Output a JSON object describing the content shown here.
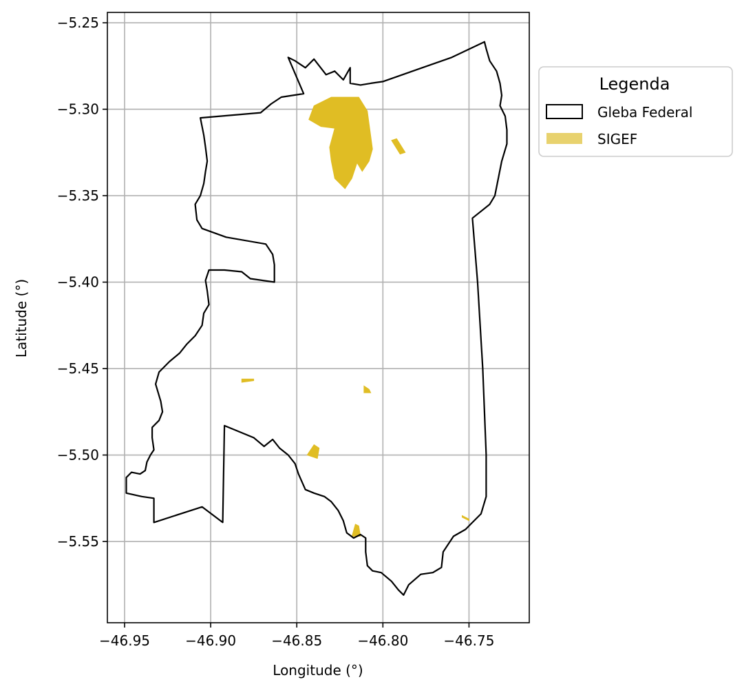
{
  "chart_data": {
    "type": "map",
    "xlabel": "Longitude (°)",
    "ylabel": "Latitude (°)",
    "xlim": [
      -46.96,
      -46.715
    ],
    "ylim": [
      -5.597,
      -5.244
    ],
    "grid": true,
    "x_ticks": [
      {
        "value": -46.95,
        "label": "−46.95"
      },
      {
        "value": -46.9,
        "label": "−46.90"
      },
      {
        "value": -46.85,
        "label": "−46.85"
      },
      {
        "value": -46.8,
        "label": "−46.80"
      },
      {
        "value": -46.75,
        "label": "−46.75"
      }
    ],
    "y_ticks": [
      {
        "value": -5.25,
        "label": "−5.25"
      },
      {
        "value": -5.3,
        "label": "−5.30"
      },
      {
        "value": -5.35,
        "label": "−5.35"
      },
      {
        "value": -5.4,
        "label": "−5.40"
      },
      {
        "value": -5.45,
        "label": "−5.45"
      },
      {
        "value": -5.5,
        "label": "−5.50"
      },
      {
        "value": -5.55,
        "label": "−5.55"
      }
    ],
    "legend": {
      "title": "Legenda",
      "placement": "outside-upper-right",
      "entries": [
        {
          "label": "Gleba Federal",
          "style": "outline",
          "color": "#000000"
        },
        {
          "label": "SIGEF",
          "style": "fill",
          "color": "#e8d26e"
        }
      ]
    },
    "layers": {
      "gleba_federal": {
        "name": "Gleba Federal",
        "edge_color": "#000000",
        "fill": "none",
        "boundary": [
          [
            -46.855,
            -5.27
          ],
          [
            -46.851,
            -5.272
          ],
          [
            -46.845,
            -5.276
          ],
          [
            -46.84,
            -5.271
          ],
          [
            -46.833,
            -5.28
          ],
          [
            -46.828,
            -5.278
          ],
          [
            -46.823,
            -5.283
          ],
          [
            -46.819,
            -5.276
          ],
          [
            -46.819,
            -5.285
          ],
          [
            -46.813,
            -5.286
          ],
          [
            -46.807,
            -5.285
          ],
          [
            -46.8,
            -5.284
          ],
          [
            -46.78,
            -5.277
          ],
          [
            -46.76,
            -5.27
          ],
          [
            -46.741,
            -5.261
          ],
          [
            -46.74,
            -5.265
          ],
          [
            -46.738,
            -5.272
          ],
          [
            -46.734,
            -5.278
          ],
          [
            -46.732,
            -5.285
          ],
          [
            -46.731,
            -5.292
          ],
          [
            -46.732,
            -5.298
          ],
          [
            -46.729,
            -5.304
          ],
          [
            -46.728,
            -5.312
          ],
          [
            -46.728,
            -5.32
          ],
          [
            -46.731,
            -5.33
          ],
          [
            -46.733,
            -5.34
          ],
          [
            -46.735,
            -5.35
          ],
          [
            -46.738,
            -5.355
          ],
          [
            -46.748,
            -5.363
          ],
          [
            -46.745,
            -5.4
          ],
          [
            -46.742,
            -5.45
          ],
          [
            -46.74,
            -5.5
          ],
          [
            -46.74,
            -5.524
          ],
          [
            -46.743,
            -5.534
          ],
          [
            -46.749,
            -5.54
          ],
          [
            -46.752,
            -5.543
          ],
          [
            -46.759,
            -5.547
          ],
          [
            -46.765,
            -5.556
          ],
          [
            -46.766,
            -5.565
          ],
          [
            -46.771,
            -5.568
          ],
          [
            -46.778,
            -5.569
          ],
          [
            -46.785,
            -5.575
          ],
          [
            -46.788,
            -5.581
          ],
          [
            -46.791,
            -5.578
          ],
          [
            -46.795,
            -5.573
          ],
          [
            -46.801,
            -5.568
          ],
          [
            -46.806,
            -5.567
          ],
          [
            -46.809,
            -5.564
          ],
          [
            -46.81,
            -5.556
          ],
          [
            -46.81,
            -5.548
          ],
          [
            -46.813,
            -5.546
          ],
          [
            -46.817,
            -5.548
          ],
          [
            -46.821,
            -5.545
          ],
          [
            -46.823,
            -5.538
          ],
          [
            -46.826,
            -5.532
          ],
          [
            -46.83,
            -5.527
          ],
          [
            -46.834,
            -5.524
          ],
          [
            -46.84,
            -5.522
          ],
          [
            -46.845,
            -5.52
          ],
          [
            -46.849,
            -5.511
          ],
          [
            -46.851,
            -5.505
          ],
          [
            -46.855,
            -5.5
          ],
          [
            -46.86,
            -5.496
          ],
          [
            -46.864,
            -5.491
          ],
          [
            -46.869,
            -5.495
          ],
          [
            -46.875,
            -5.49
          ],
          [
            -46.892,
            -5.483
          ],
          [
            -46.893,
            -5.539
          ],
          [
            -46.905,
            -5.53
          ],
          [
            -46.933,
            -5.539
          ],
          [
            -46.933,
            -5.525
          ],
          [
            -46.94,
            -5.524
          ],
          [
            -46.949,
            -5.522
          ],
          [
            -46.949,
            -5.513
          ],
          [
            -46.946,
            -5.51
          ],
          [
            -46.941,
            -5.511
          ],
          [
            -46.938,
            -5.509
          ],
          [
            -46.937,
            -5.504
          ],
          [
            -46.935,
            -5.5
          ],
          [
            -46.933,
            -5.497
          ],
          [
            -46.934,
            -5.49
          ],
          [
            -46.934,
            -5.484
          ],
          [
            -46.93,
            -5.48
          ],
          [
            -46.928,
            -5.475
          ],
          [
            -46.929,
            -5.469
          ],
          [
            -46.932,
            -5.459
          ],
          [
            -46.93,
            -5.452
          ],
          [
            -46.924,
            -5.446
          ],
          [
            -46.918,
            -5.441
          ],
          [
            -46.914,
            -5.436
          ],
          [
            -46.909,
            -5.431
          ],
          [
            -46.905,
            -5.425
          ],
          [
            -46.904,
            -5.418
          ],
          [
            -46.901,
            -5.413
          ],
          [
            -46.902,
            -5.405
          ],
          [
            -46.903,
            -5.399
          ],
          [
            -46.901,
            -5.393
          ],
          [
            -46.892,
            -5.393
          ],
          [
            -46.882,
            -5.394
          ],
          [
            -46.877,
            -5.398
          ],
          [
            -46.863,
            -5.4
          ],
          [
            -46.863,
            -5.39
          ],
          [
            -46.864,
            -5.384
          ],
          [
            -46.868,
            -5.378
          ],
          [
            -46.891,
            -5.374
          ],
          [
            -46.905,
            -5.369
          ],
          [
            -46.908,
            -5.364
          ],
          [
            -46.909,
            -5.355
          ],
          [
            -46.906,
            -5.35
          ],
          [
            -46.904,
            -5.343
          ],
          [
            -46.903,
            -5.336
          ],
          [
            -46.902,
            -5.33
          ],
          [
            -46.903,
            -5.322
          ],
          [
            -46.904,
            -5.315
          ],
          [
            -46.906,
            -5.305
          ],
          [
            -46.871,
            -5.302
          ],
          [
            -46.865,
            -5.297
          ],
          [
            -46.859,
            -5.293
          ],
          [
            -46.846,
            -5.291
          ],
          [
            -46.855,
            -5.27
          ]
        ]
      },
      "sigef": {
        "name": "SIGEF",
        "fill_color": "#e0bd24",
        "polygons": [
          [
            [
              -46.83,
              -5.293
            ],
            [
              -46.814,
              -5.293
            ],
            [
              -46.809,
              -5.301
            ],
            [
              -46.806,
              -5.323
            ],
            [
              -46.808,
              -5.33
            ],
            [
              -46.812,
              -5.336
            ],
            [
              -46.815,
              -5.331
            ],
            [
              -46.818,
              -5.34
            ],
            [
              -46.822,
              -5.346
            ],
            [
              -46.828,
              -5.34
            ],
            [
              -46.83,
              -5.33
            ],
            [
              -46.831,
              -5.322
            ],
            [
              -46.828,
              -5.311
            ],
            [
              -46.836,
              -5.31
            ],
            [
              -46.843,
              -5.306
            ],
            [
              -46.84,
              -5.298
            ]
          ],
          [
            [
              -46.795,
              -5.318
            ],
            [
              -46.792,
              -5.317
            ],
            [
              -46.787,
              -5.325
            ],
            [
              -46.79,
              -5.326
            ]
          ],
          [
            [
              -46.882,
              -5.456
            ],
            [
              -46.875,
              -5.456
            ],
            [
              -46.875,
              -5.457
            ],
            [
              -46.882,
              -5.458
            ]
          ],
          [
            [
              -46.811,
              -5.46
            ],
            [
              -46.808,
              -5.462
            ],
            [
              -46.807,
              -5.464
            ],
            [
              -46.811,
              -5.464
            ]
          ],
          [
            [
              -46.84,
              -5.494
            ],
            [
              -46.837,
              -5.496
            ],
            [
              -46.838,
              -5.502
            ],
            [
              -46.844,
              -5.5
            ]
          ],
          [
            [
              -46.816,
              -5.54
            ],
            [
              -46.814,
              -5.541
            ],
            [
              -46.813,
              -5.547
            ],
            [
              -46.818,
              -5.547
            ]
          ],
          [
            [
              -46.754,
              -5.535
            ],
            [
              -46.75,
              -5.537
            ],
            [
              -46.75,
              -5.538
            ],
            [
              -46.754,
              -5.536
            ]
          ]
        ]
      }
    }
  }
}
